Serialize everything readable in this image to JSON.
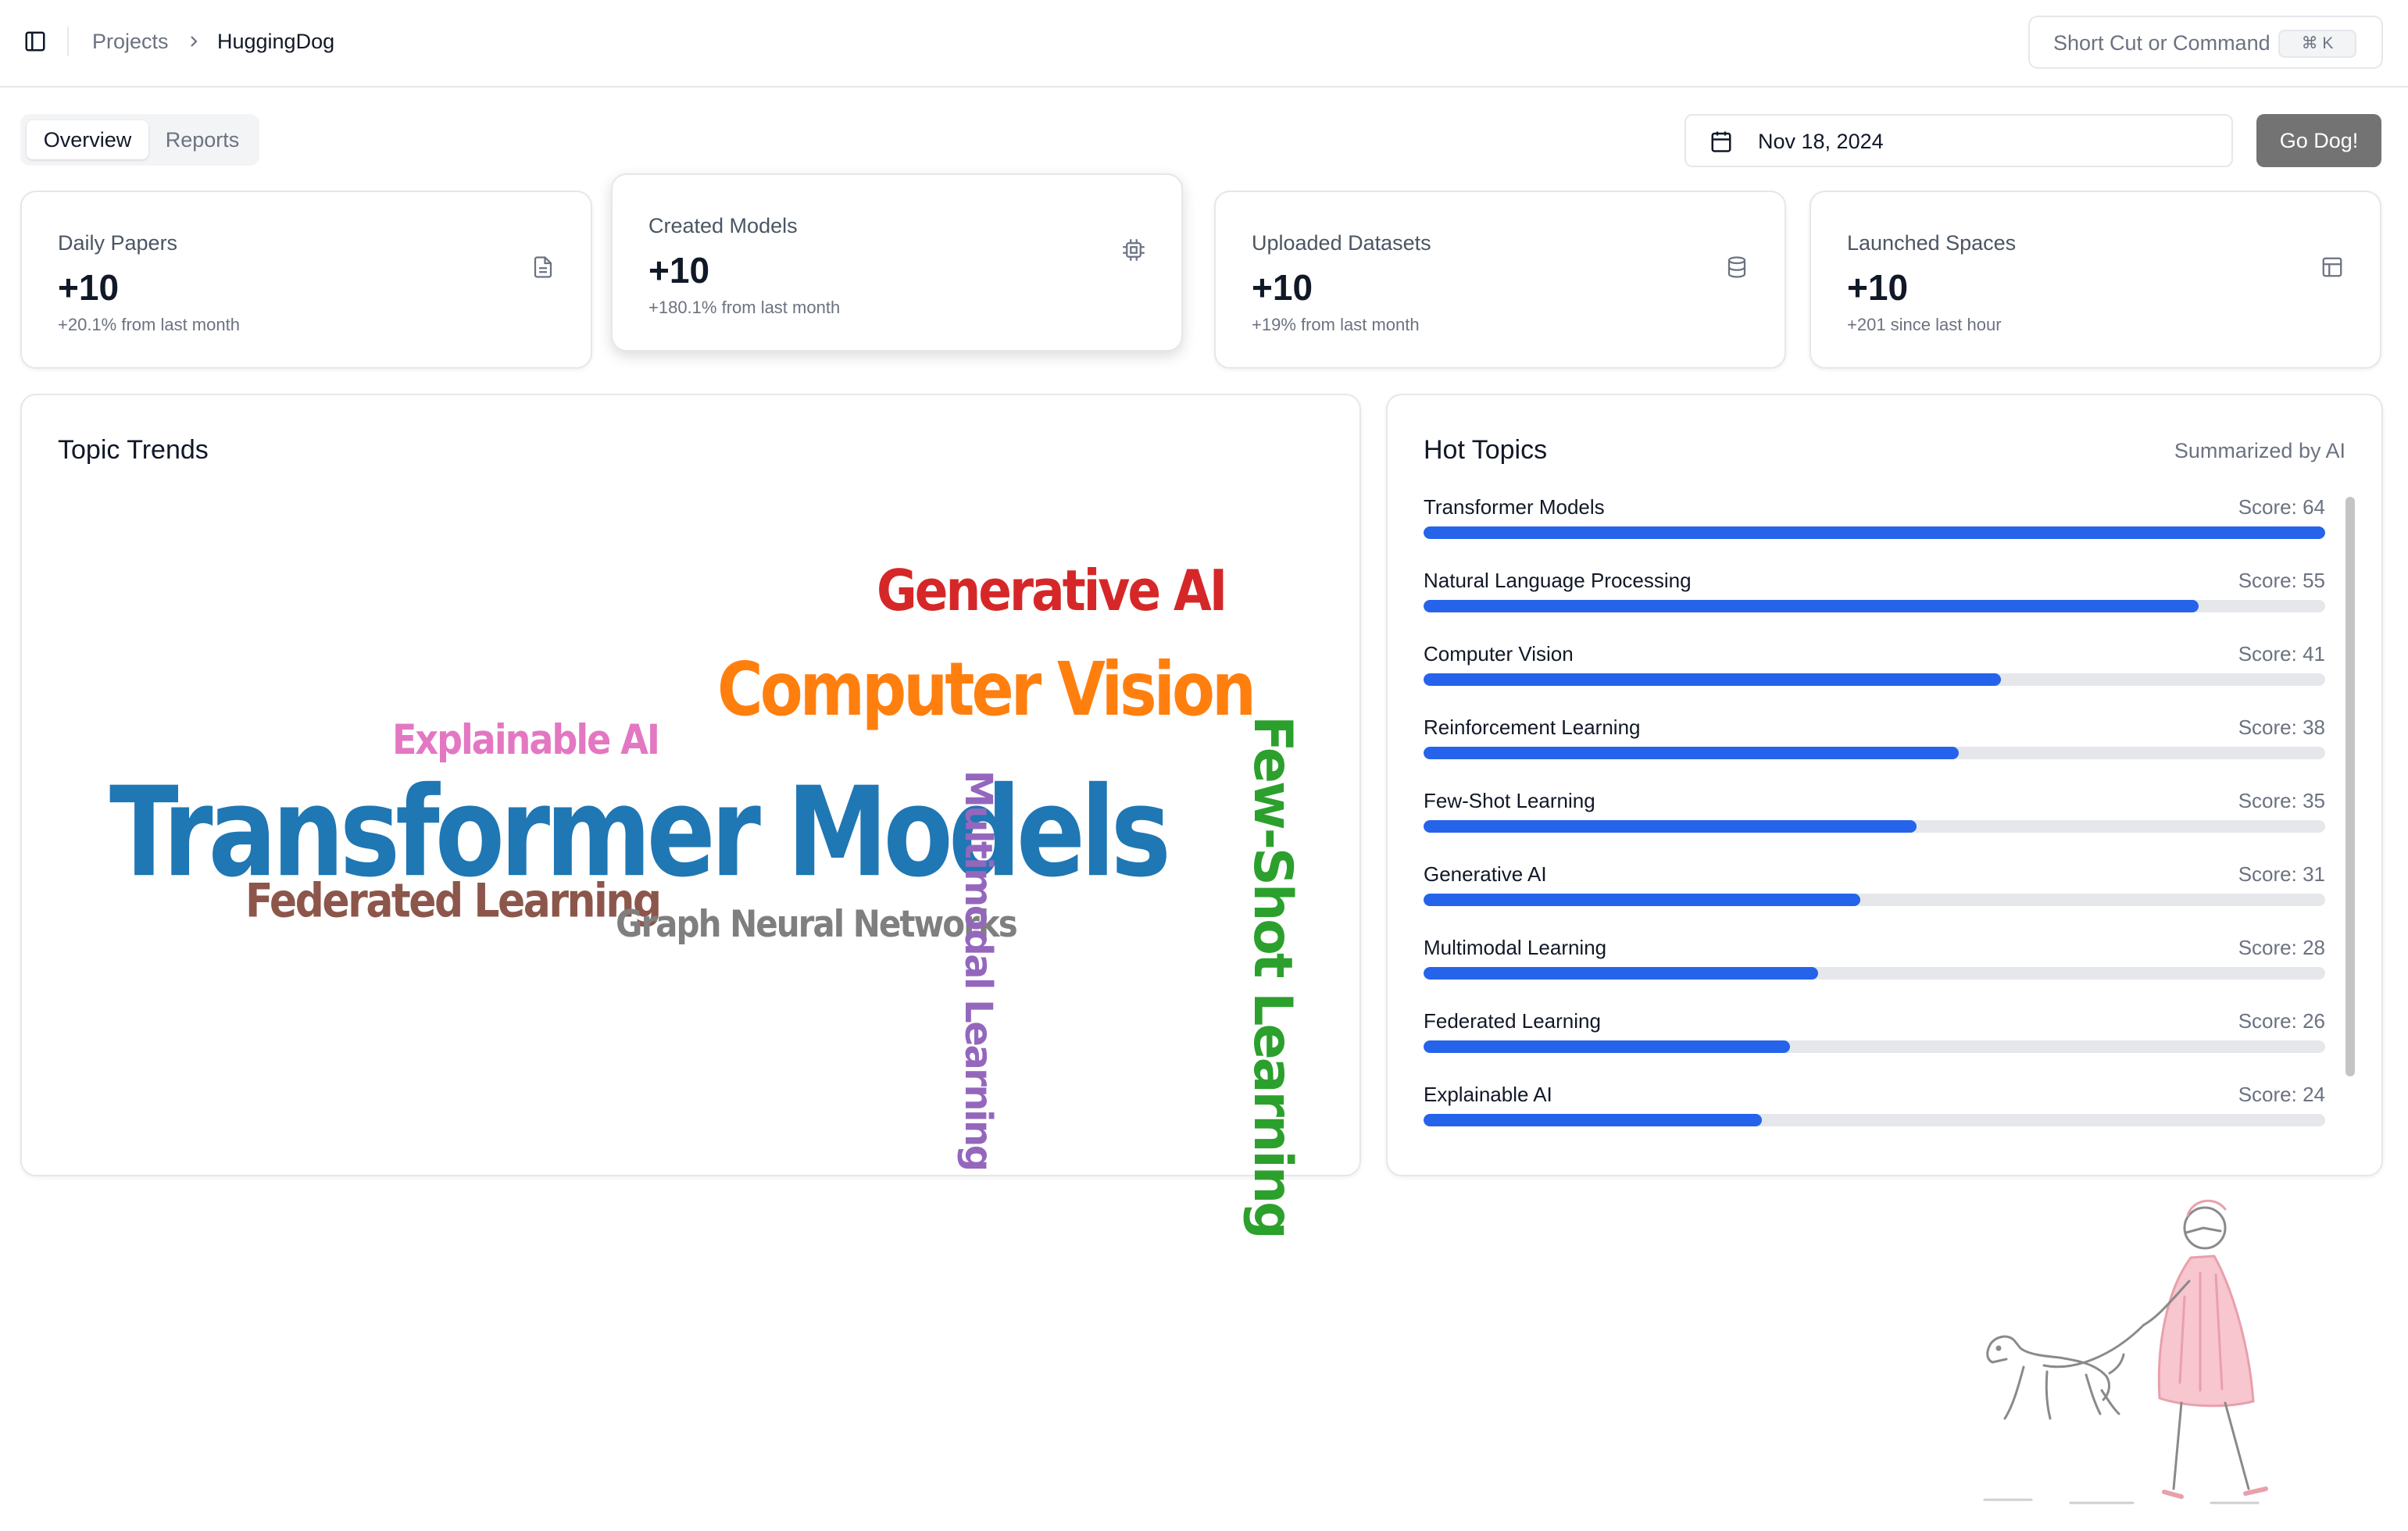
{
  "header": {
    "breadcrumb": [
      "Projects",
      "HuggingDog"
    ],
    "command_placeholder": "Short Cut or Command",
    "command_shortcut": "⌘ K"
  },
  "tabs": [
    {
      "label": "Overview",
      "active": true
    },
    {
      "label": "Reports",
      "active": false
    }
  ],
  "date_picker": {
    "value": "Nov 18, 2024"
  },
  "go_button": "Go Dog!",
  "stats": [
    {
      "label": "Daily Papers",
      "value": "+10",
      "change": "+20.1% from last month",
      "icon": "file-text-icon"
    },
    {
      "label": "Created Models",
      "value": "+10",
      "change": "+180.1% from last month",
      "icon": "cpu-chip-icon"
    },
    {
      "label": "Uploaded Datasets",
      "value": "+10",
      "change": "+19% from last month",
      "icon": "database-icon"
    },
    {
      "label": "Launched Spaces",
      "value": "+10",
      "change": "+201 since last hour",
      "icon": "layout-icon"
    }
  ],
  "topic_trends": {
    "title": "Topic Trends",
    "words": [
      {
        "text": "Transformer Models",
        "color": "#1f77b4",
        "vertical": false
      },
      {
        "text": "Computer Vision",
        "color": "#ff7f0e",
        "vertical": false
      },
      {
        "text": "Generative AI",
        "color": "#d62728",
        "vertical": false
      },
      {
        "text": "Few-Shot Learning",
        "color": "#2ca02c",
        "vertical": true
      },
      {
        "text": "Multimodal Learning",
        "color": "#9467bd",
        "vertical": true
      },
      {
        "text": "Federated Learning",
        "color": "#8c564b",
        "vertical": false
      },
      {
        "text": "Explainable AI",
        "color": "#e377c2",
        "vertical": false
      },
      {
        "text": "Graph Neural Networks",
        "color": "#7f7f7f",
        "vertical": false
      }
    ]
  },
  "hot_topics": {
    "title": "Hot Topics",
    "note": "Summarized by AI",
    "score_prefix": "Score: ",
    "max_score": 64,
    "bar_color": "#2563eb",
    "items": [
      {
        "name": "Transformer Models",
        "score": 64
      },
      {
        "name": "Natural Language Processing",
        "score": 55
      },
      {
        "name": "Computer Vision",
        "score": 41
      },
      {
        "name": "Reinforcement Learning",
        "score": 38
      },
      {
        "name": "Few-Shot Learning",
        "score": 35
      },
      {
        "name": "Generative AI",
        "score": 31
      },
      {
        "name": "Multimodal Learning",
        "score": 28
      },
      {
        "name": "Federated Learning",
        "score": 26
      },
      {
        "name": "Explainable AI",
        "score": 24
      }
    ]
  }
}
